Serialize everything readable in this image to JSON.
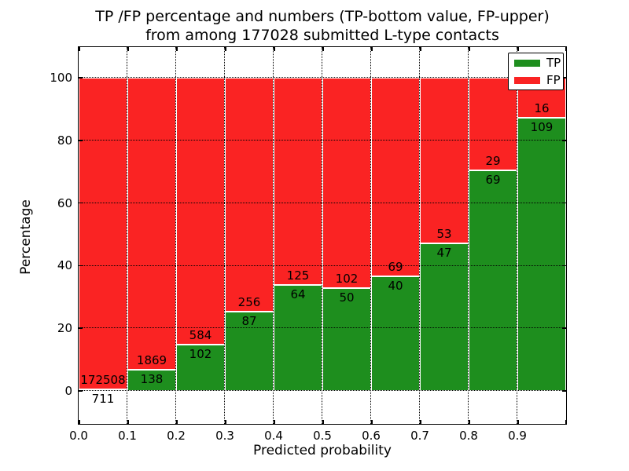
{
  "figure": {
    "title_line1": "TP /FP percentage and numbers (TP-bottom value, FP-upper)",
    "title_line2": "from among 177028 submitted L-type contacts"
  },
  "chart_data": {
    "type": "bar",
    "subtype": "stacked-100-percent-histogram",
    "title": "TP /FP percentage and numbers (TP-bottom value, FP-upper) from among 177028 submitted L-type contacts",
    "xlabel": "Predicted probability",
    "ylabel": "Percentage",
    "total_contacts": 177028,
    "bins": {
      "start": 0.0,
      "bin_width": 0.1,
      "count": 10
    },
    "xticklabels": [
      "0.0",
      "0.1",
      "0.2",
      "0.3",
      "0.4",
      "0.5",
      "0.6",
      "0.7",
      "0.8",
      "0.9"
    ],
    "yticks": [
      0,
      20,
      40,
      60,
      80,
      100
    ],
    "ylim": [
      -10.5,
      110
    ],
    "grid": {
      "visible": true,
      "style": "dotted",
      "color": "#000000"
    },
    "series": [
      {
        "name": "TP",
        "color": "#1e8e1e",
        "counts": [
          711,
          138,
          102,
          87,
          64,
          50,
          40,
          47,
          69,
          109
        ]
      },
      {
        "name": "FP",
        "color": "#fa2323",
        "counts": [
          172508,
          1869,
          584,
          256,
          125,
          102,
          69,
          53,
          29,
          16
        ]
      }
    ],
    "tp_percent_by_bin": [
      0.41,
      6.88,
      14.87,
      25.36,
      33.86,
      32.89,
      36.7,
      47.0,
      70.41,
      87.2
    ],
    "legend": {
      "position": "upper-right",
      "entries": [
        {
          "label": "TP",
          "color": "#1e8e1e"
        },
        {
          "label": "FP",
          "color": "#fa2323"
        }
      ]
    }
  }
}
